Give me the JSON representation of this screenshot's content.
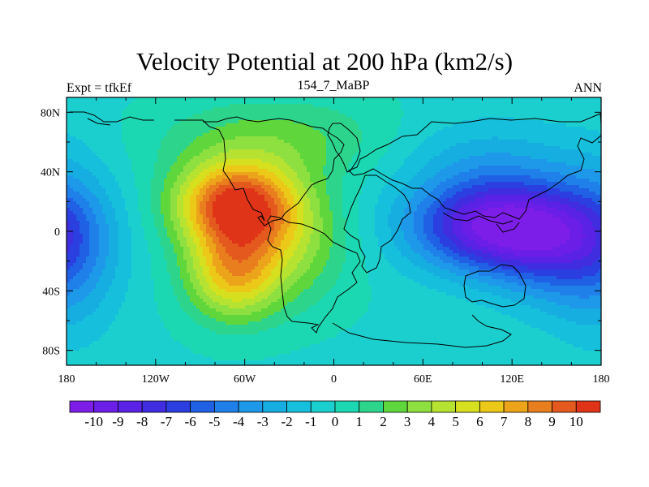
{
  "chart_data": {
    "type": "heatmap",
    "title": "Velocity Potential at 200 hPa (km2/s)",
    "left_string": "Expt = tfkEf",
    "center_string": "154_7_MaBP",
    "right_string": "ANN",
    "x_ticks": [
      "180",
      "120W",
      "60W",
      "0",
      "60E",
      "120E",
      "180"
    ],
    "y_ticks": [
      "80N",
      "40N",
      "0",
      "40S",
      "80S"
    ],
    "xlim": [
      -180,
      180
    ],
    "ylim": [
      -90,
      90
    ],
    "colorbar": {
      "labels": [
        "-10",
        "-9",
        "-8",
        "-7",
        "-6",
        "-5",
        "-4",
        "-3",
        "-2",
        "-1",
        "0",
        "1",
        "2",
        "3",
        "4",
        "5",
        "6",
        "7",
        "8",
        "9",
        "10"
      ],
      "levels": [
        -10,
        -9,
        -8,
        -7,
        -6,
        -5,
        -4,
        -3,
        -2,
        -1,
        0,
        1,
        2,
        3,
        4,
        5,
        6,
        7,
        8,
        9,
        10
      ],
      "colors": [
        "#7d1ee8",
        "#6a1ee6",
        "#5a22e4",
        "#3f2ddf",
        "#2b3ee0",
        "#2060e4",
        "#1e80e8",
        "#1e98e8",
        "#16aee0",
        "#16c0dc",
        "#1ccfcf",
        "#1cd8b2",
        "#2dd58c",
        "#5fd63c",
        "#8ee040",
        "#b6e232",
        "#d6e01e",
        "#ecc818",
        "#eca41a",
        "#e87e1e",
        "#e45a1e",
        "#e03418"
      ]
    },
    "fields": [
      {
        "lon": -66,
        "lat": 18,
        "amp": 10.3,
        "sx": 28,
        "sy": 20
      },
      {
        "lon": -68,
        "lat": -28,
        "amp": 6.5,
        "sx": 22,
        "sy": 22
      },
      {
        "lon": -30,
        "lat": -8,
        "amp": 3.2,
        "sx": 28,
        "sy": 28
      },
      {
        "lon": -40,
        "lat": 62,
        "amp": 2.5,
        "sx": 55,
        "sy": 20
      },
      {
        "lon": 112,
        "lat": 4,
        "amp": -10.4,
        "sx": 42,
        "sy": 22
      },
      {
        "lon": 148,
        "lat": -18,
        "amp": -3.0,
        "sx": 30,
        "sy": 26
      },
      {
        "lon": 102,
        "lat": 50,
        "amp": -2.0,
        "sx": 45,
        "sy": 20
      },
      {
        "lon": -178,
        "lat": -10,
        "amp": -3.5,
        "sx": 25,
        "sy": 40
      }
    ]
  }
}
